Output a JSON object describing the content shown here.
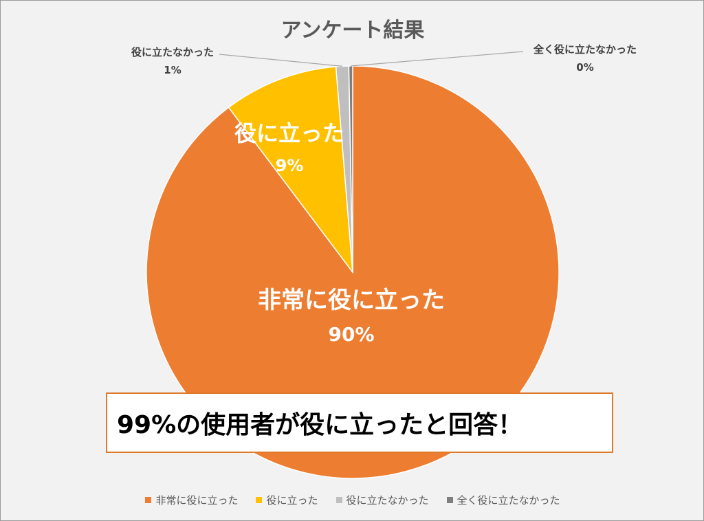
{
  "chart_data": {
    "type": "pie",
    "title": "アンケート結果",
    "categories": [
      "非常に役に立った",
      "役に立った",
      "役に立たなかった",
      "全く役に立たなかった"
    ],
    "values": [
      90,
      9,
      1,
      0.3
    ],
    "percent_labels": [
      "90%",
      "9%",
      "1%",
      "0%"
    ],
    "colors": [
      "#ed7d31",
      "#ffc000",
      "#bfbfbf",
      "#7f7f7f"
    ],
    "legend_position": "bottom"
  },
  "annotation": {
    "text": "99%の使用者が役に立ったと回答！"
  }
}
